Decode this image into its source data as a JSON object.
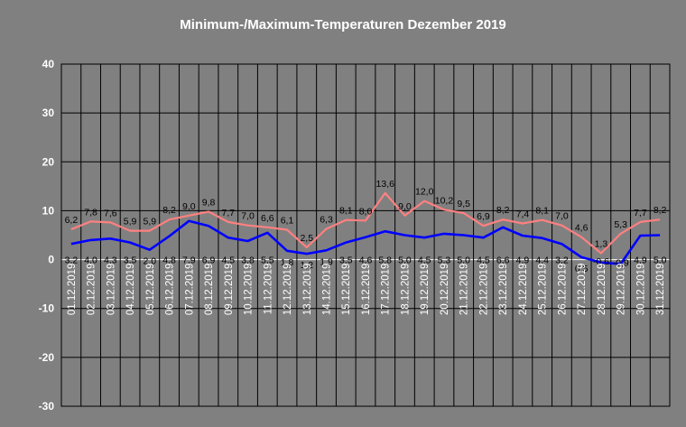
{
  "chart_data": {
    "type": "line",
    "title": "Minimum-/Maximum-Temperaturen Dezember 2019",
    "xlabel": "",
    "ylabel": "",
    "ylim": [
      -30,
      40
    ],
    "yticks": [
      40,
      30,
      20,
      10,
      0,
      -10,
      -20,
      -30
    ],
    "grid": true,
    "categories": [
      "01.12.2019",
      "02.12.2019",
      "03.12.2019",
      "04.12.2019",
      "05.12.2019",
      "06.12.2019",
      "07.12.2019",
      "08.12.2019",
      "09.12.2019",
      "10.12.2019",
      "11.12.2019",
      "12.12.2019",
      "13.12.2019",
      "14.12.2019",
      "15.12.2019",
      "16.12.2019",
      "17.12.2019",
      "18.12.2019",
      "19.12.2019",
      "20.12.2019",
      "21.12.2019",
      "22.12.2019",
      "23.12.2019",
      "24.12.2019",
      "25.12.2019",
      "26.12.2019",
      "27.12.2019",
      "28.12.2019",
      "29.12.2019",
      "30.12.2019",
      "31.12.2019"
    ],
    "series": [
      {
        "color": "#ff8080",
        "values": [
          6.2,
          7.8,
          7.6,
          5.9,
          5.9,
          8.2,
          9.0,
          9.8,
          7.7,
          7.0,
          6.6,
          6.1,
          2.5,
          6.3,
          8.1,
          8.0,
          13.6,
          9.0,
          12.0,
          10.2,
          9.5,
          6.9,
          8.2,
          7.4,
          8.1,
          7.0,
          4.6,
          1.3,
          5.3,
          7.7,
          8.2
        ],
        "labels": [
          "6,2",
          "7,8",
          "7,6",
          "5,9",
          "5,9",
          "8,2",
          "9,0",
          "9,8",
          "7,7",
          "7,0",
          "6,6",
          "6,1",
          "2,5",
          "6,3",
          "8,1",
          "8,0",
          "13,6",
          "9,0",
          "12,0",
          "10,2",
          "9,5",
          "6,9",
          "8,2",
          "7,4",
          "8,1",
          "7,0",
          "4,6",
          "1,3",
          "5,3",
          "7,7",
          "8,2"
        ]
      },
      {
        "color": "#0000ff",
        "values": [
          3.2,
          4.0,
          4.3,
          3.5,
          2.0,
          4.8,
          7.9,
          6.9,
          4.5,
          3.8,
          5.5,
          1.8,
          1.2,
          1.9,
          3.5,
          4.6,
          5.8,
          5.0,
          4.5,
          5.3,
          5.0,
          4.5,
          6.6,
          4.9,
          4.4,
          3.2,
          0.5,
          -0.6,
          -0.9,
          4.9,
          5.0
        ],
        "labels": [
          "3,2",
          "4,0",
          "4,3",
          "3,5",
          "2,0",
          "4,8",
          "7,9",
          "6,9",
          "4,5",
          "3,8",
          "5,5",
          "1,8",
          "1,2",
          "1,9",
          "3,5",
          "4,6",
          "5,8",
          "5,0",
          "4,5",
          "5,3",
          "5,0",
          "4,5",
          "6,6",
          "4,9",
          "4,4",
          "3,2",
          "0,5",
          "-0,6",
          "-0,9",
          "4,9",
          "5,0"
        ]
      }
    ]
  }
}
